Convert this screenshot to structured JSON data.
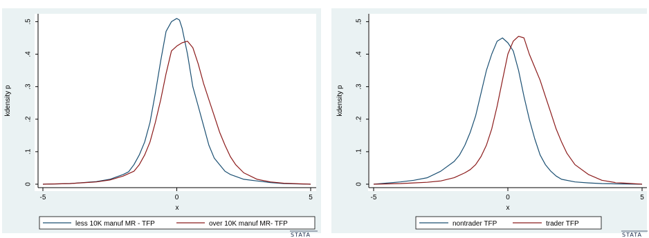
{
  "chart_data": [
    {
      "type": "line",
      "xlabel": "x",
      "ylabel": "kdensity p",
      "xlim": [
        -5,
        5
      ],
      "ylim": [
        0,
        0.52
      ],
      "xticks": [
        "-5",
        "0",
        "5"
      ],
      "yticks": [
        "0",
        ".1",
        ".2",
        ".3",
        ".4",
        ".5"
      ],
      "grid": false,
      "legend_position": "bottom",
      "brand": "STATA",
      "series": [
        {
          "name": "less 10K manuf MR - TFP",
          "color": "#1a4f72",
          "x": [
            -5,
            -4,
            -3,
            -2.5,
            -2,
            -1.8,
            -1.6,
            -1.4,
            -1.2,
            -1.0,
            -0.8,
            -0.6,
            -0.4,
            -0.2,
            0,
            0.1,
            0.2,
            0.4,
            0.6,
            0.8,
            1.0,
            1.2,
            1.4,
            1.6,
            1.8,
            2.0,
            2.5,
            3.0,
            3.5,
            4.0,
            5.0
          ],
          "y": [
            0.0,
            0.002,
            0.008,
            0.015,
            0.03,
            0.038,
            0.06,
            0.09,
            0.13,
            0.19,
            0.28,
            0.38,
            0.47,
            0.5,
            0.51,
            0.505,
            0.48,
            0.4,
            0.3,
            0.24,
            0.18,
            0.12,
            0.08,
            0.06,
            0.04,
            0.03,
            0.015,
            0.01,
            0.005,
            0.002,
            0.0
          ]
        },
        {
          "name": "over 10K manuf MR- TFP",
          "color": "#8b1a1a",
          "x": [
            -5,
            -4,
            -3,
            -2.5,
            -2,
            -1.6,
            -1.4,
            -1.2,
            -1.0,
            -0.8,
            -0.6,
            -0.4,
            -0.2,
            0,
            0.2,
            0.4,
            0.6,
            0.8,
            1.0,
            1.2,
            1.4,
            1.6,
            1.8,
            2.0,
            2.2,
            2.5,
            3.0,
            3.5,
            4.0,
            5.0
          ],
          "y": [
            0.0,
            0.002,
            0.007,
            0.013,
            0.025,
            0.04,
            0.06,
            0.09,
            0.13,
            0.19,
            0.26,
            0.34,
            0.41,
            0.425,
            0.435,
            0.44,
            0.42,
            0.37,
            0.31,
            0.26,
            0.21,
            0.16,
            0.12,
            0.085,
            0.06,
            0.035,
            0.015,
            0.007,
            0.003,
            0.0
          ]
        }
      ]
    },
    {
      "type": "line",
      "xlabel": "x",
      "ylabel": "kdensity p",
      "xlim": [
        -5,
        5
      ],
      "ylim": [
        0,
        0.52
      ],
      "xticks": [
        "-5",
        "0",
        "5"
      ],
      "yticks": [
        "0",
        ".1",
        ".2",
        ".3",
        ".4",
        ".5"
      ],
      "grid": false,
      "legend_position": "bottom",
      "brand": "STATA",
      "series": [
        {
          "name": "nontrader TFP",
          "color": "#1a4f72",
          "x": [
            -5,
            -4,
            -3.5,
            -3,
            -2.5,
            -2,
            -1.8,
            -1.6,
            -1.4,
            -1.2,
            -1.0,
            -0.8,
            -0.6,
            -0.4,
            -0.2,
            0,
            0.2,
            0.4,
            0.6,
            0.8,
            1.0,
            1.2,
            1.4,
            1.6,
            1.8,
            2.0,
            2.5,
            3.0,
            3.5,
            4.0,
            5.0
          ],
          "y": [
            0.0,
            0.007,
            0.012,
            0.02,
            0.04,
            0.07,
            0.09,
            0.12,
            0.16,
            0.21,
            0.28,
            0.35,
            0.4,
            0.44,
            0.45,
            0.435,
            0.41,
            0.35,
            0.27,
            0.2,
            0.14,
            0.09,
            0.06,
            0.04,
            0.025,
            0.015,
            0.007,
            0.004,
            0.002,
            0.001,
            0.0
          ]
        },
        {
          "name": "trader TFP",
          "color": "#8b1a1a",
          "x": [
            -5,
            -4,
            -3.5,
            -3,
            -2.5,
            -2,
            -1.6,
            -1.4,
            -1.2,
            -1.0,
            -0.8,
            -0.6,
            -0.4,
            -0.2,
            0,
            0.2,
            0.4,
            0.6,
            0.8,
            1.0,
            1.2,
            1.4,
            1.6,
            1.8,
            2.0,
            2.2,
            2.5,
            3.0,
            3.5,
            4.0,
            5.0
          ],
          "y": [
            0.0,
            0.002,
            0.004,
            0.006,
            0.01,
            0.02,
            0.035,
            0.045,
            0.06,
            0.085,
            0.12,
            0.17,
            0.24,
            0.32,
            0.4,
            0.44,
            0.455,
            0.45,
            0.4,
            0.36,
            0.32,
            0.27,
            0.22,
            0.17,
            0.13,
            0.095,
            0.06,
            0.03,
            0.012,
            0.005,
            0.0
          ]
        }
      ]
    }
  ]
}
